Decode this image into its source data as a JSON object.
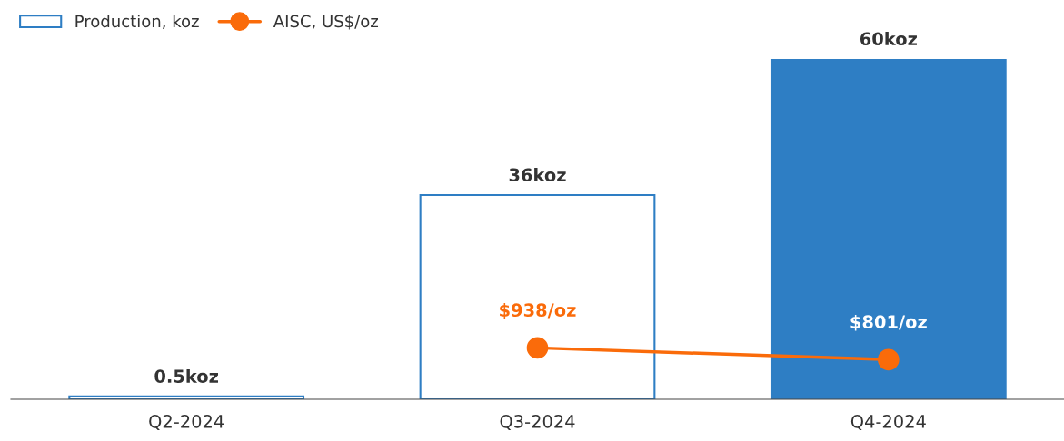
{
  "chart_data": {
    "type": "bar",
    "categories": [
      "Q2-2024",
      "Q3-2024",
      "Q4-2024"
    ],
    "series": [
      {
        "name": "Production, koz",
        "color": "#2e7ec4",
        "colors": [
          "#ffffff",
          "#ffffff",
          "#2e7ec4"
        ],
        "values": [
          0.5,
          36,
          60
        ],
        "value_labels": [
          "0.5koz",
          "36koz",
          "60koz"
        ]
      },
      {
        "name": "AISC, US$/oz",
        "type": "line",
        "axis": "y2",
        "color": "#fa6b0a",
        "values": [
          null,
          938,
          801
        ],
        "value_labels": [
          null,
          "$938/oz",
          "$801/oz"
        ]
      }
    ],
    "ylim": [
      0,
      60
    ],
    "y2lim": [
      340,
      4300
    ],
    "tick_labels": "x",
    "legend": "top left",
    "marker": "circle",
    "grid": false
  }
}
